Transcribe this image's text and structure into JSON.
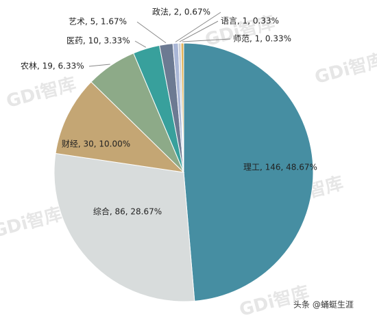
{
  "chart_data": {
    "type": "pie",
    "categories": [
      "理工",
      "综合",
      "财经",
      "农林",
      "医药",
      "艺术",
      "政法",
      "语言",
      "师范"
    ],
    "values": [
      146,
      86,
      30,
      19,
      10,
      5,
      2,
      1,
      1
    ],
    "value_labels": [
      "理工, 146, 48.67%",
      "综合, 86, 28.67%",
      "财经, 30, 10.00%",
      "农林, 19, 6.33%",
      "医药, 10, 3.33%",
      "艺术, 5, 1.67%",
      "政法, 2, 0.67%",
      "语言, 1, 0.33%",
      "师范, 1, 0.33%"
    ],
    "colors": [
      "#468ea2",
      "#d8dcdc",
      "#c4a674",
      "#8daa88",
      "#38a09c",
      "#6c7a92",
      "#a9b6d6",
      "#c9ced8",
      "#e3b35a"
    ]
  },
  "watermark": "GDi智库",
  "footer": "头条 @蛹蜓生涯"
}
